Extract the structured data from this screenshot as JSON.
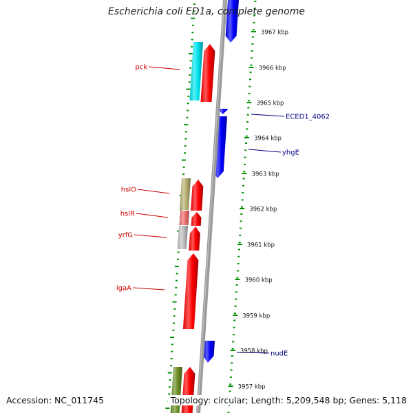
{
  "title": "Escherichia coli ED1a, complete genome",
  "footer": {
    "accession": "Accession: NC_011745",
    "topology": "Topology: circular; Length: 5,209,548 bp; Genes: 5,118"
  },
  "colors": {
    "forward_label": "#cc0000",
    "reverse_label": "#000080",
    "forward_gene": "#ff0000",
    "reverse_gene": "#0000ff",
    "backbone": "#8a8a8a",
    "ticks": "#009000",
    "pck_feature": "#00e5ee",
    "hslO_feature": "#b8b070",
    "hslR_feature": "#f07070",
    "yrfG_feature": "#c0c0c0",
    "bottom_feature": "#6b8e23"
  },
  "scale": {
    "unit": "kbp",
    "labels": [
      "3967 kbp",
      "3966 kbp",
      "3965 kbp",
      "3964 kbp",
      "3963 kbp",
      "3962 kbp",
      "3961 kbp",
      "3960 kbp",
      "3959 kbp",
      "3958 kbp",
      "3957 kbp"
    ]
  },
  "genes": {
    "forward": [
      "pck",
      "hslO",
      "hslR",
      "yrfG",
      "igaA"
    ],
    "reverse": [
      "ECED1_4062",
      "yhgE",
      "nudE"
    ]
  }
}
